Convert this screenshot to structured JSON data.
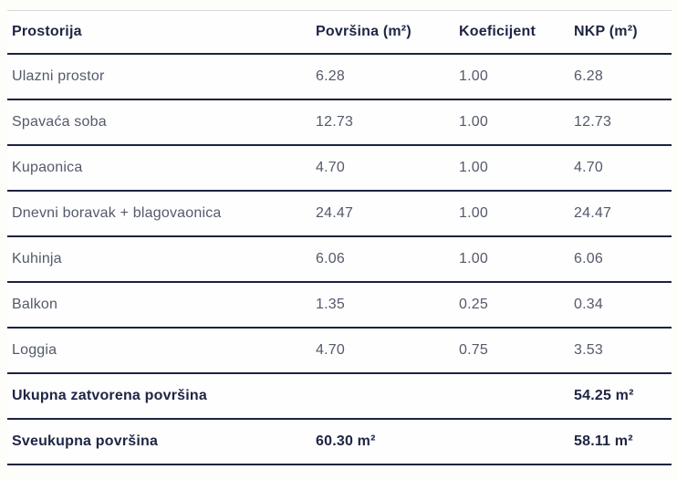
{
  "colors": {
    "heading_text": "#1e2544",
    "body_text": "#545a6b",
    "divider_dark": "#1c2340",
    "divider_light": "#d9dad8",
    "background": "#fdfdfa"
  },
  "chart_data": {
    "type": "table",
    "title": "",
    "columns": [
      "Prostorija",
      "Površina (m²)",
      "Koeficijent",
      "NKP (m²)"
    ],
    "rows": [
      [
        "Ulazni prostor",
        "6.28",
        "1.00",
        "6.28"
      ],
      [
        "Spavaća soba",
        "12.73",
        "1.00",
        "12.73"
      ],
      [
        "Kupaonica",
        "4.70",
        "1.00",
        "4.70"
      ],
      [
        "Dnevni boravak + blagovaonica",
        "24.47",
        "1.00",
        "24.47"
      ],
      [
        "Kuhinja",
        "6.06",
        "1.00",
        "6.06"
      ],
      [
        "Balkon",
        "1.35",
        "0.25",
        "0.34"
      ],
      [
        "Loggia",
        "4.70",
        "0.75",
        "3.53"
      ]
    ],
    "totals": [
      {
        "label": "Ukupna zatvorena površina",
        "povrsina": "",
        "koeficijent": "",
        "nkp": "54.25 m²"
      },
      {
        "label": "Sveukupna površina",
        "povrsina": "60.30 m²",
        "koeficijent": "",
        "nkp": "58.11 m²"
      }
    ]
  }
}
